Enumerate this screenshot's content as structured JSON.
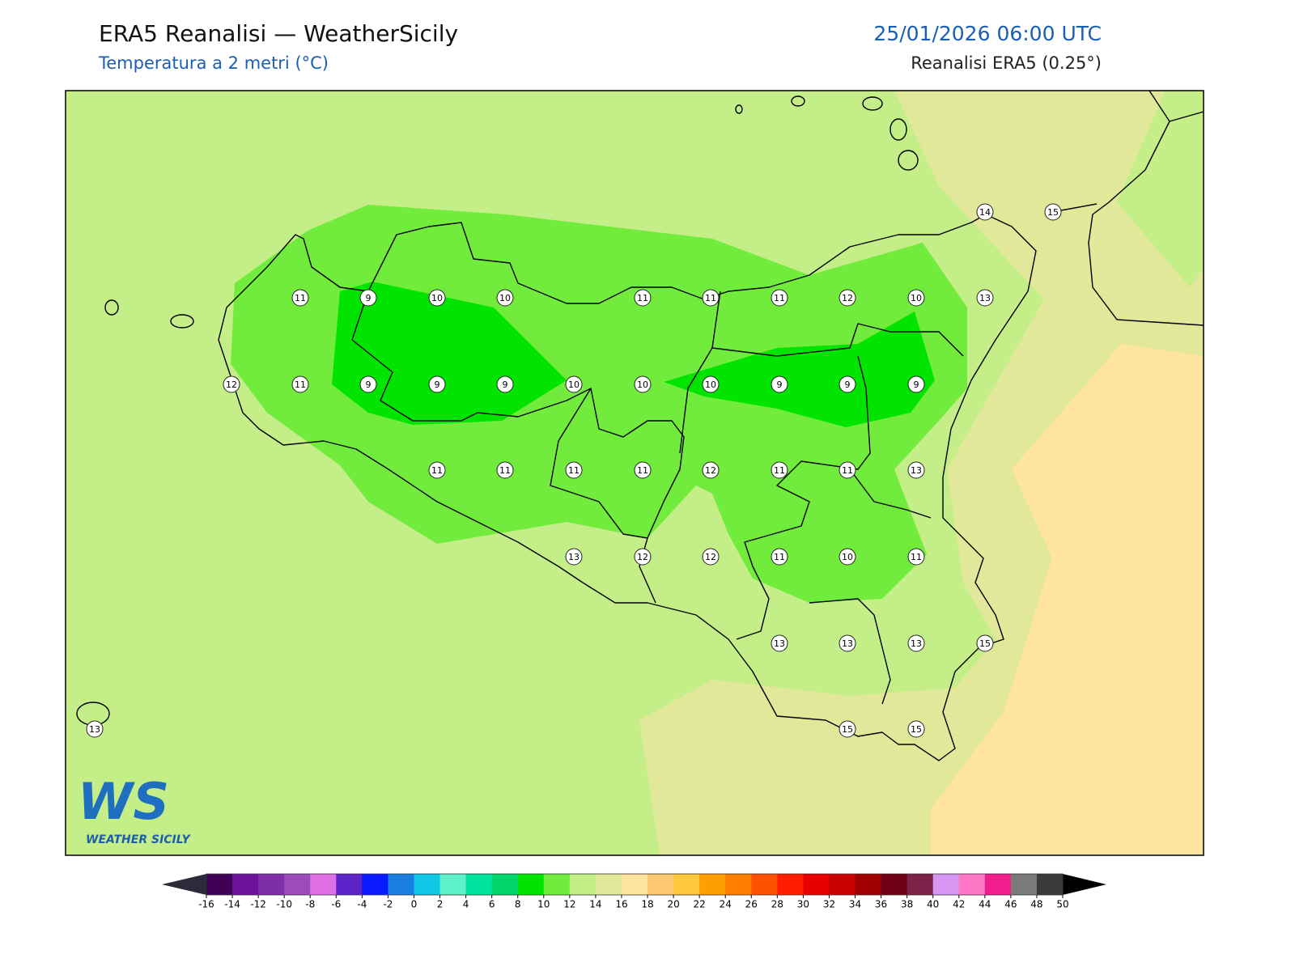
{
  "header": {
    "title": "ERA5 Reanalisi — WeatherSicily",
    "subtitle": "Temperatura a 2 metri (°C)",
    "datetime": "25/01/2026 06:00 UTC",
    "source": "Reanalisi ERA5 (0.25°)"
  },
  "logo": {
    "mark": "WS",
    "text": "WEATHER SICILY"
  },
  "stations": [
    14,
    15,
    11,
    9,
    10,
    10,
    11,
    11,
    11,
    12,
    10,
    13,
    12,
    11,
    9,
    9,
    9,
    10,
    10,
    10,
    9,
    9,
    9,
    11,
    11,
    11,
    11,
    12,
    11,
    11,
    13,
    13,
    12,
    12,
    11,
    10,
    11,
    13,
    13,
    13,
    15,
    13,
    15,
    15
  ],
  "colorbar": {
    "ticks": [
      -16,
      -14,
      -12,
      -10,
      -8,
      -6,
      -4,
      -2,
      0,
      2,
      4,
      6,
      8,
      10,
      12,
      14,
      16,
      18,
      20,
      22,
      24,
      26,
      28,
      30,
      32,
      34,
      36,
      38,
      40,
      42,
      44,
      46,
      48,
      50
    ],
    "colors": [
      "#400054",
      "#6a1399",
      "#7e2fa8",
      "#9b4cb8",
      "#e070e6",
      "#5b23c8",
      "#0a1aff",
      "#1a7ee0",
      "#10c8e6",
      "#5ef0c8",
      "#00e39e",
      "#00d66a",
      "#00e400",
      "#72ec3c",
      "#c4ee88",
      "#e2e89a",
      "#ffe4a0",
      "#fcc870",
      "#ffc83a",
      "#ff9e00",
      "#ff7e00",
      "#ff5200",
      "#ff1e00",
      "#e60000",
      "#c80000",
      "#a00000",
      "#6e0018",
      "#7a2248",
      "#d796f2",
      "#ff78c8",
      "#f01e8c",
      "#7a7a7a",
      "#3a3a3a"
    ],
    "under": "#2b2b3b",
    "over": "#000000"
  }
}
